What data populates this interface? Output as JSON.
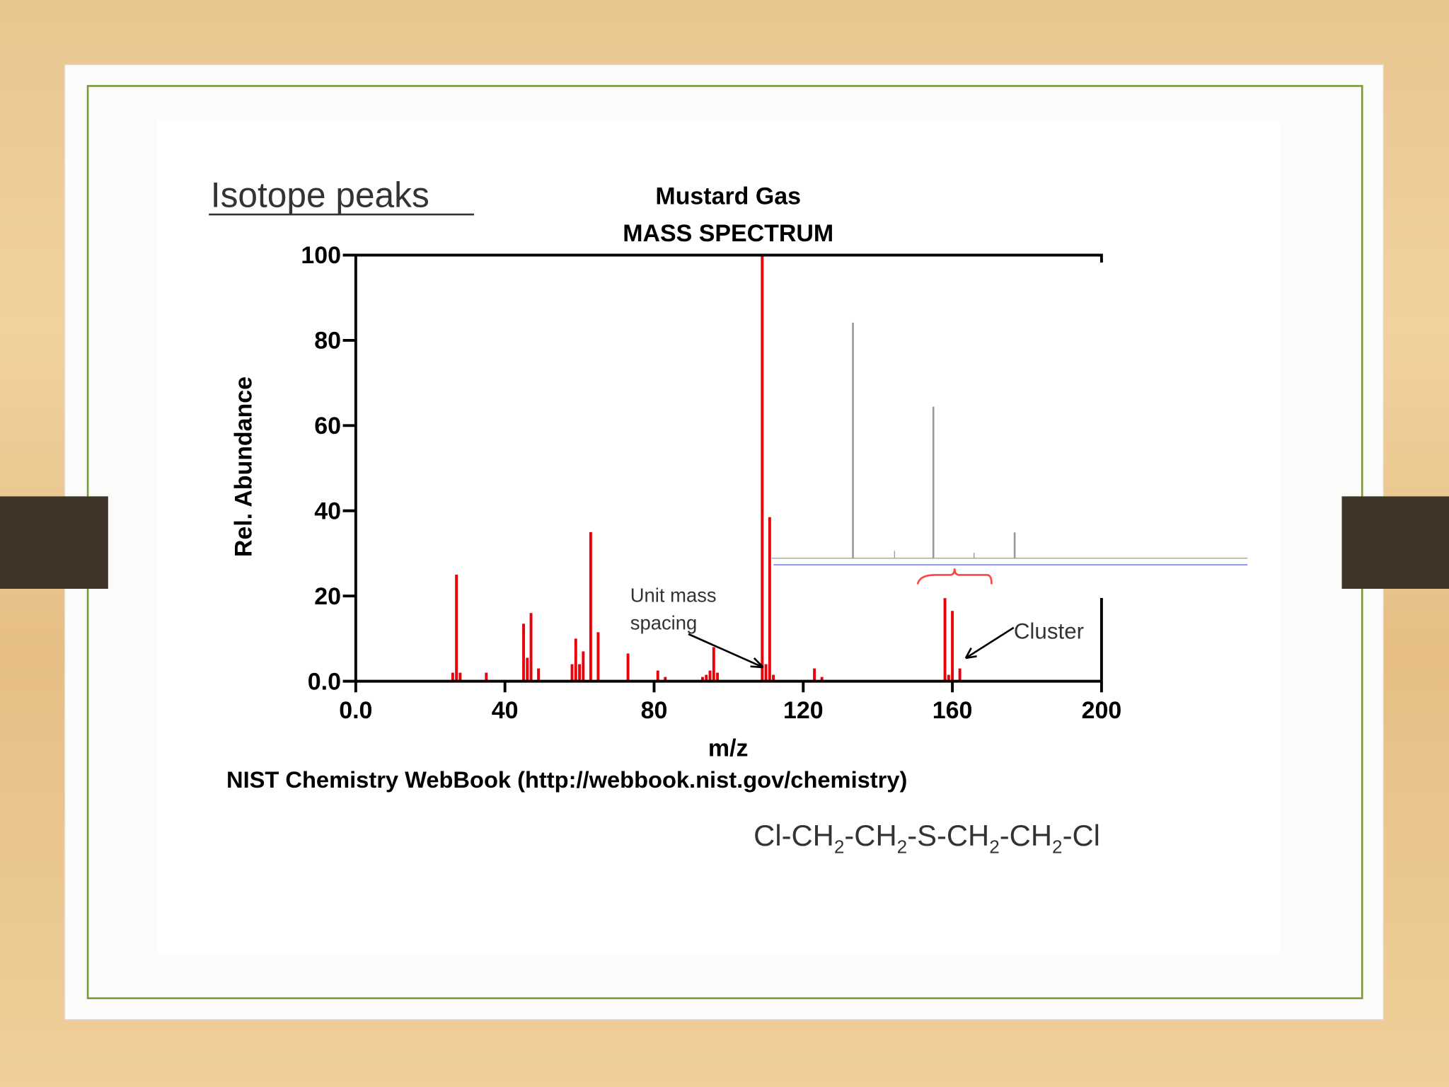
{
  "slide": {
    "title": "Isotope peaks",
    "source": "NIST Chemistry WebBook (http://webbook.nist.gov/chemistry)",
    "formula": [
      "Cl-CH",
      "2",
      "-CH",
      "2",
      "-S-CH",
      "2",
      "-CH",
      "2",
      "-Cl"
    ]
  },
  "chart_data": {
    "type": "bar",
    "title": "Mustard Gas",
    "subtitle": "MASS SPECTRUM",
    "x_label": "m/z",
    "y_label": "Rel. Abundance",
    "x": [
      26,
      27,
      28,
      35,
      45,
      46,
      47,
      49,
      58,
      59,
      60,
      61,
      63,
      65,
      73,
      81,
      83,
      93,
      94,
      95,
      96,
      97,
      109,
      110,
      111,
      112,
      123,
      125,
      158,
      159,
      160,
      162
    ],
    "values": [
      2,
      25,
      2,
      2,
      13.5,
      5.5,
      16,
      3,
      4,
      10,
      4,
      7,
      35,
      11.5,
      6.5,
      2.5,
      1,
      1,
      1.5,
      2.5,
      8,
      2,
      100,
      4,
      38.5,
      1.5,
      3,
      1,
      19.5,
      1.5,
      16.5,
      3
    ],
    "color": "#e8000b",
    "xlim": [
      0,
      200
    ],
    "ylim": [
      0,
      100
    ],
    "xticks": [
      {
        "value": 0,
        "label": "0.0"
      },
      40,
      80,
      120,
      160,
      200
    ],
    "yticks": [
      {
        "value": 0,
        "label": "0.0"
      },
      20,
      40,
      60,
      80,
      100
    ],
    "annotations": [
      "Unit mass",
      "spacing",
      "Cluster"
    ]
  }
}
